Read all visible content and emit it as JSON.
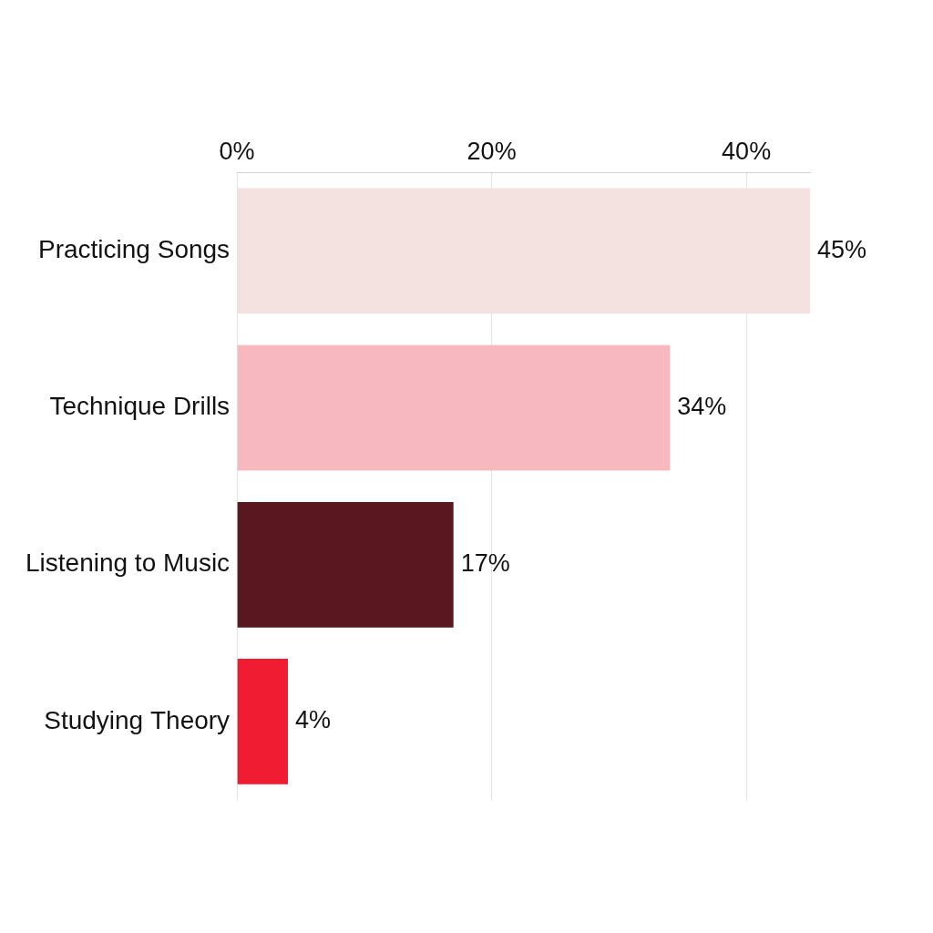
{
  "chart_data": {
    "type": "bar",
    "orientation": "horizontal",
    "categories": [
      "Practicing Songs",
      "Technique Drills",
      "Listening to Music",
      "Studying Theory"
    ],
    "values": [
      45,
      34,
      17,
      4
    ],
    "value_labels": [
      "45%",
      "34%",
      "17%",
      "4%"
    ],
    "colors": [
      "#f3e1e0",
      "#f8b9be",
      "#59171e",
      "#f01d32"
    ],
    "xlim": [
      0,
      45
    ],
    "xticks": [
      {
        "value": 0,
        "label": "0%"
      },
      {
        "value": 20,
        "label": "20%"
      },
      {
        "value": 40,
        "label": "40%"
      }
    ],
    "grid": true,
    "data_labels": true
  }
}
